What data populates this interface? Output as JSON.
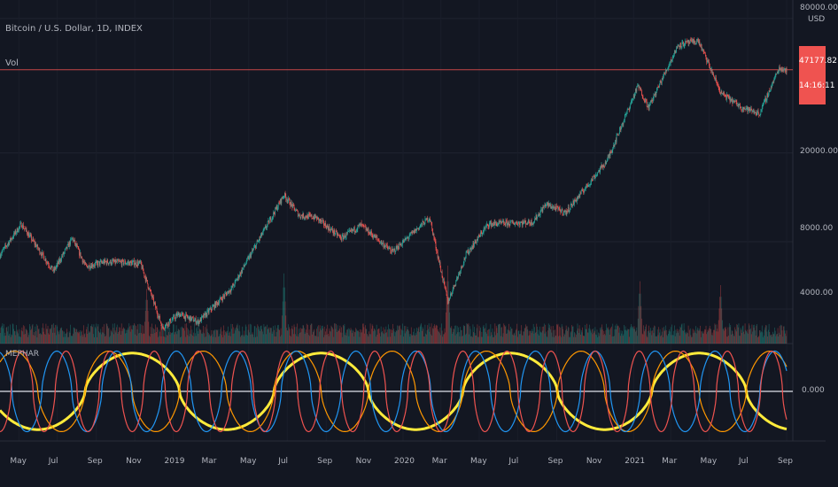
{
  "header": {
    "symbol_label": "Bitcoin / U.S. Dollar, 1D, INDEX",
    "volume_label": "Vol"
  },
  "price_axis": {
    "currency": "USD",
    "tick_labels": [
      "80000.00",
      "20000.00",
      "8000.00",
      "4000.00"
    ],
    "last_price": "47177.82",
    "countdown": "14:16:11"
  },
  "indicator": {
    "name": "MEPHAR",
    "zero_label": "0.000"
  },
  "time_axis": {
    "labels": [
      "May",
      "Jul",
      "Sep",
      "Nov",
      "2019",
      "Mar",
      "May",
      "Jul",
      "Sep",
      "Nov",
      "2020",
      "Mar",
      "May",
      "Jul",
      "Sep",
      "Nov",
      "2021",
      "Mar",
      "May",
      "Jul",
      "Sep"
    ]
  },
  "colors": {
    "background": "#131722",
    "price_up": "#26a69a",
    "price_down": "#ef5350",
    "price_line": "#ef5350",
    "yellow": "#ffeb3b",
    "orange": "#ff9800",
    "blue": "#2196f3",
    "red": "#ef5350",
    "white": "#e0e3eb"
  },
  "chart_data": [
    {
      "type": "candlestick",
      "title": "Bitcoin / U.S. Dollar, 1D, INDEX",
      "scale": "log",
      "ylim": [
        2800,
        90000
      ],
      "x_start": "2018-04",
      "x_end": "2021-09",
      "price_keypoints": [
        {
          "date": "2018-04-01",
          "price": 7000
        },
        {
          "date": "2018-05-05",
          "price": 9600
        },
        {
          "date": "2018-06-25",
          "price": 5900
        },
        {
          "date": "2018-07-25",
          "price": 8300
        },
        {
          "date": "2018-08-15",
          "price": 6200
        },
        {
          "date": "2018-09-15",
          "price": 6500
        },
        {
          "date": "2018-11-10",
          "price": 6400
        },
        {
          "date": "2018-12-15",
          "price": 3300
        },
        {
          "date": "2019-01-10",
          "price": 3800
        },
        {
          "date": "2019-02-10",
          "price": 3500
        },
        {
          "date": "2019-04-05",
          "price": 5000
        },
        {
          "date": "2019-06-26",
          "price": 13000
        },
        {
          "date": "2019-07-20",
          "price": 10500
        },
        {
          "date": "2019-08-15",
          "price": 10300
        },
        {
          "date": "2019-09-25",
          "price": 8300
        },
        {
          "date": "2019-10-26",
          "price": 9500
        },
        {
          "date": "2019-12-15",
          "price": 7200
        },
        {
          "date": "2020-02-12",
          "price": 10300
        },
        {
          "date": "2020-03-12",
          "price": 4300
        },
        {
          "date": "2020-04-10",
          "price": 7000
        },
        {
          "date": "2020-05-15",
          "price": 9600
        },
        {
          "date": "2020-07-25",
          "price": 9800
        },
        {
          "date": "2020-08-15",
          "price": 11800
        },
        {
          "date": "2020-09-15",
          "price": 10800
        },
        {
          "date": "2020-11-20",
          "price": 18500
        },
        {
          "date": "2021-01-08",
          "price": 40000
        },
        {
          "date": "2021-01-25",
          "price": 32000
        },
        {
          "date": "2021-03-13",
          "price": 61000
        },
        {
          "date": "2021-04-14",
          "price": 63500
        },
        {
          "date": "2021-05-20",
          "price": 37000
        },
        {
          "date": "2021-06-22",
          "price": 32000
        },
        {
          "date": "2021-07-20",
          "price": 30000
        },
        {
          "date": "2021-08-20",
          "price": 48000
        },
        {
          "date": "2021-09-01",
          "price": 47177.82
        }
      ],
      "last_price": 47177.82
    },
    {
      "type": "bar",
      "title": "Vol",
      "note": "daily volume histogram; notable spikes",
      "spikes": [
        {
          "date": "2018-11-20",
          "relative": 0.7
        },
        {
          "date": "2019-06-26",
          "relative": 0.9
        },
        {
          "date": "2020-03-12",
          "relative": 1.0
        },
        {
          "date": "2021-01-11",
          "relative": 0.8
        },
        {
          "date": "2021-05-19",
          "relative": 0.75
        }
      ]
    },
    {
      "type": "line",
      "title": "MEPHAR",
      "ylim": [
        -1.1,
        1.1
      ],
      "zero_line": 0,
      "series": [
        {
          "name": "yellow",
          "color": "yellow",
          "period_days": 300,
          "phase": 0.55,
          "amplitude": 0.95
        },
        {
          "name": "orange",
          "color": "orange",
          "period_days": 150,
          "phase": 0.1,
          "amplitude": 1.0
        },
        {
          "name": "blue",
          "color": "blue",
          "period_days": 95,
          "phase": 0.3,
          "amplitude": 1.0
        },
        {
          "name": "red",
          "color": "red",
          "period_days": 70,
          "phase": 0.75,
          "amplitude": 1.0
        }
      ]
    }
  ]
}
